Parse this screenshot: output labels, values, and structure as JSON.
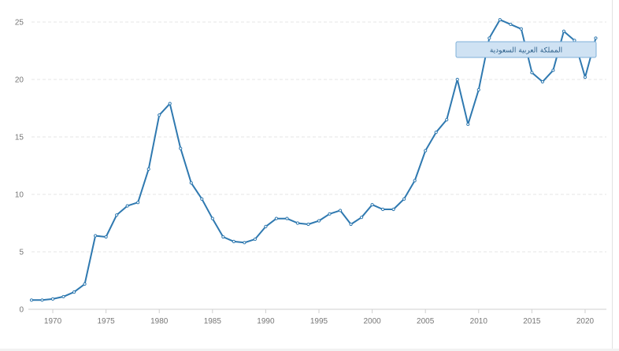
{
  "chart_data": {
    "type": "line",
    "title": "",
    "xlabel": "",
    "ylabel": "",
    "xlim": [
      1968,
      2022
    ],
    "ylim": [
      0,
      25
    ],
    "xticks": [
      1970,
      1975,
      1980,
      1985,
      1990,
      1995,
      2000,
      2005,
      2010,
      2015,
      2020
    ],
    "yticks": [
      0,
      5,
      10,
      15,
      20,
      25
    ],
    "grid": true,
    "legend": "top-right",
    "colors": {
      "series": "#2f79b0",
      "legend_fill": "#cfe2f3"
    },
    "series": [
      {
        "name": "المملكة العربية السعودية",
        "x": [
          1968,
          1969,
          1970,
          1971,
          1972,
          1973,
          1974,
          1975,
          1976,
          1977,
          1978,
          1979,
          1980,
          1981,
          1982,
          1983,
          1984,
          1985,
          1986,
          1987,
          1988,
          1989,
          1990,
          1991,
          1992,
          1993,
          1994,
          1995,
          1996,
          1997,
          1998,
          1999,
          2000,
          2001,
          2002,
          2003,
          2004,
          2005,
          2006,
          2007,
          2008,
          2009,
          2010,
          2011,
          2012,
          2013,
          2014,
          2015,
          2016,
          2017,
          2018,
          2019,
          2020,
          2021
        ],
        "y": [
          0.8,
          0.8,
          0.9,
          1.1,
          1.5,
          2.2,
          6.4,
          6.3,
          8.2,
          9.0,
          9.3,
          12.2,
          16.9,
          17.9,
          14.0,
          11.0,
          9.6,
          7.9,
          6.3,
          5.9,
          5.8,
          6.1,
          7.2,
          7.9,
          7.9,
          7.5,
          7.4,
          7.7,
          8.3,
          8.6,
          7.4,
          8.0,
          9.1,
          8.7,
          8.7,
          9.6,
          11.2,
          13.8,
          15.4,
          16.5,
          20.0,
          16.1,
          19.1,
          23.6,
          25.2,
          24.8,
          24.4,
          20.6,
          19.8,
          20.8,
          24.2,
          23.4,
          20.2,
          23.6
        ]
      }
    ]
  }
}
